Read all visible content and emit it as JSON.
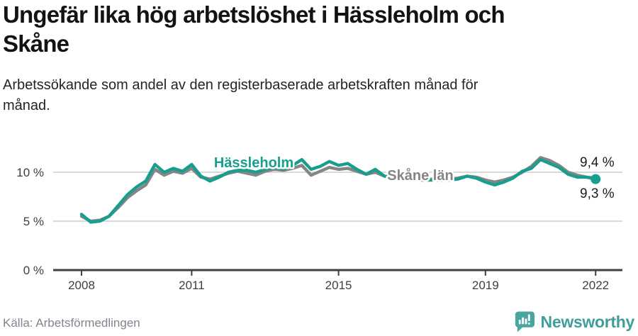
{
  "title": {
    "lines": [
      "Ungefär lika hög arbetslöshet i Hässleholm och",
      "Skåne"
    ]
  },
  "subtitle": {
    "lines": [
      "Arbetssökande som andel av den registerbaserade arbetskraften månad för",
      "månad."
    ]
  },
  "source": "Källa: Arbetsförmedlingen",
  "branding": {
    "name": "Newsworthy",
    "icon": "newsworthy-speech-bubble-bar-chart-icon",
    "icon_color": "#4aa5a1",
    "wordmark_color": "#3f9e9a"
  },
  "colors": {
    "accent_teal": "#189e8e",
    "comparison_gray": "#858585",
    "grid": "#d9d9d9",
    "axis": "#3f3f3f",
    "title_text": "#131313",
    "body_text": "#242424",
    "muted_text": "#81858d",
    "value_label_text": "#1c1c1c"
  },
  "chart_data": {
    "type": "line",
    "title": "Ungefär lika hög arbetslöshet i Hässleholm och Skåne",
    "subtitle": "Arbetssökande som andel av den registerbaserade arbetskraften månad för månad.",
    "unit": "%",
    "xlabel": "",
    "ylabel": "",
    "grid": "horizontal-only",
    "legend_position": "inline-labels-on-lines",
    "x_axis": {
      "tick_values": [
        2008,
        2011,
        2015,
        2019,
        2022
      ],
      "tick_labels": [
        "2008",
        "2011",
        "2015",
        "2019",
        "2022"
      ],
      "range": [
        2007.2,
        2022.7
      ]
    },
    "y_axis": {
      "tick_values": [
        0,
        5,
        10
      ],
      "tick_labels": [
        "0 %",
        "5 %",
        "10 %"
      ],
      "range": [
        0,
        12
      ]
    },
    "x_start": 2008.0,
    "x_step": 0.25,
    "series": [
      {
        "name": "Skåne län",
        "color": "#858585",
        "end_label": "9,4 %",
        "end_dot": false,
        "values": [
          5.5,
          5.0,
          5.1,
          5.5,
          6.4,
          7.4,
          8.1,
          8.7,
          10.3,
          9.7,
          10.1,
          9.9,
          10.4,
          9.5,
          9.3,
          9.6,
          9.9,
          10.1,
          9.9,
          9.7,
          10.1,
          10.3,
          10.2,
          10.4,
          10.7,
          9.7,
          10.1,
          10.5,
          10.3,
          10.4,
          10.1,
          9.8,
          10.0,
          9.6,
          9.5,
          9.4,
          9.4,
          9.3,
          9.3,
          9.3,
          9.3,
          9.4,
          9.6,
          9.5,
          9.2,
          9.0,
          9.2,
          9.5,
          10.0,
          10.6,
          11.5,
          11.2,
          10.7,
          10.0,
          9.7,
          9.5,
          9.4
        ]
      },
      {
        "name": "Hässleholm",
        "color": "#189e8e",
        "end_label": "9,3 %",
        "end_dot": true,
        "values": [
          5.7,
          4.9,
          5.0,
          5.5,
          6.6,
          7.7,
          8.5,
          9.1,
          10.8,
          10.0,
          10.4,
          10.1,
          10.8,
          9.6,
          9.1,
          9.5,
          10.0,
          10.2,
          10.2,
          10.0,
          10.3,
          10.5,
          10.3,
          10.7,
          11.3,
          10.3,
          10.6,
          11.1,
          10.7,
          10.9,
          10.3,
          9.8,
          10.3,
          9.6,
          9.4,
          9.3,
          9.3,
          9.2,
          9.2,
          9.2,
          9.2,
          9.3,
          9.6,
          9.4,
          9.0,
          8.7,
          9.0,
          9.4,
          10.1,
          10.4,
          11.3,
          10.9,
          10.5,
          9.8,
          9.5,
          9.5,
          9.3
        ]
      }
    ]
  }
}
